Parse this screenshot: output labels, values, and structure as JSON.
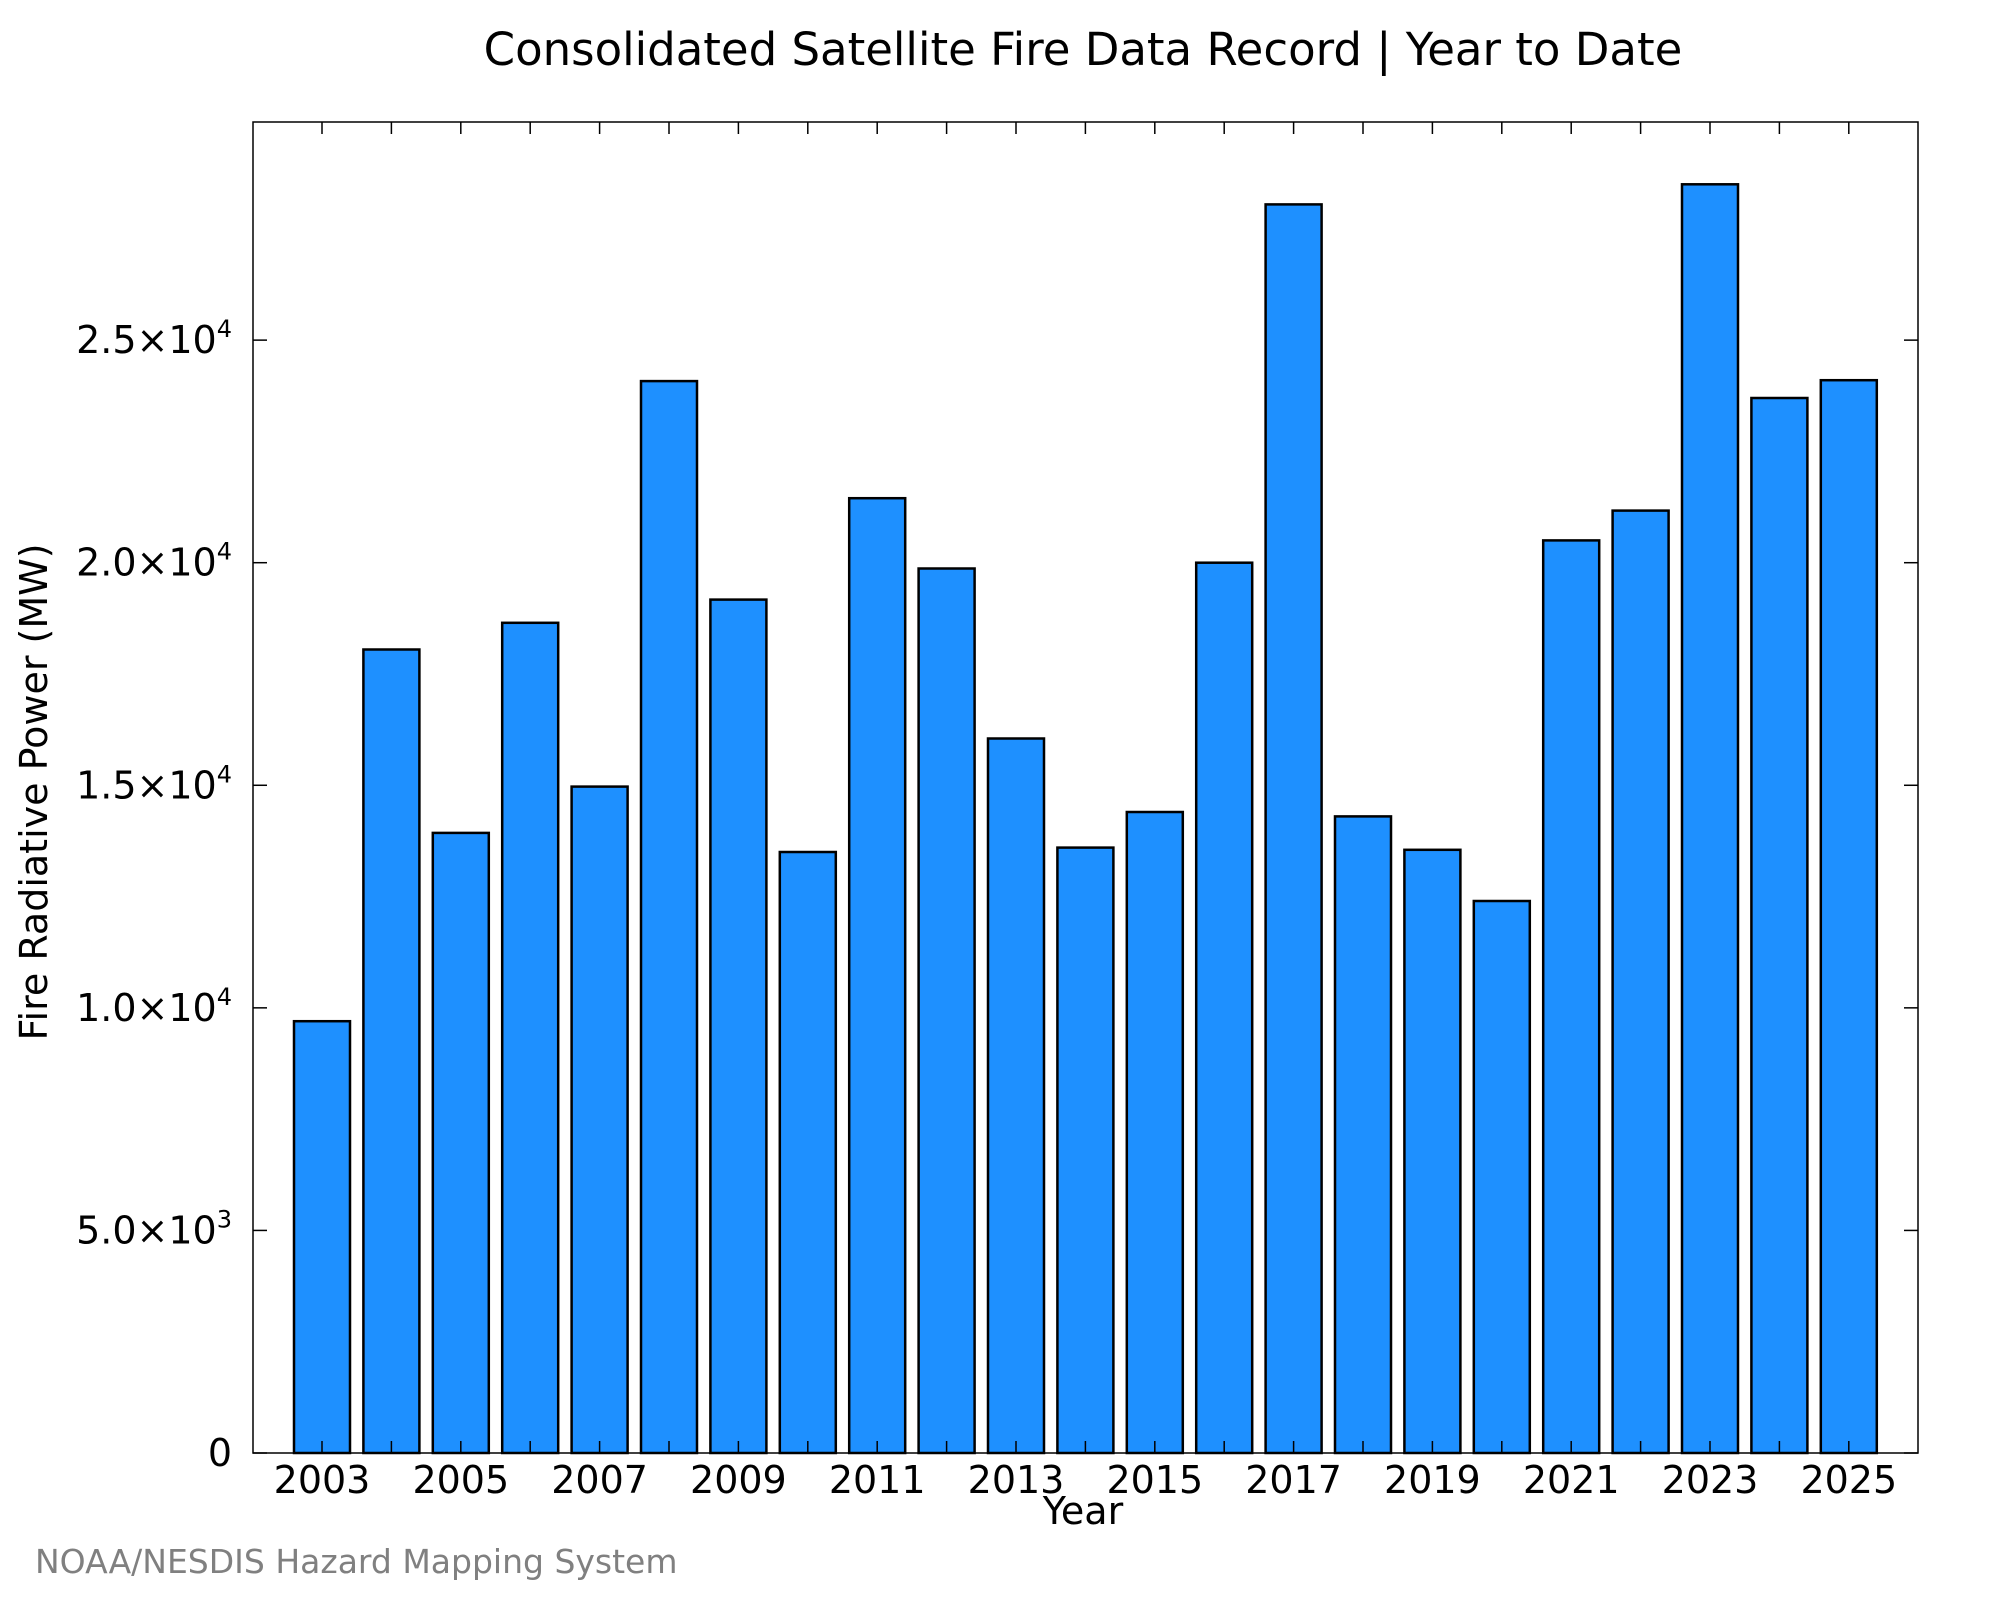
{
  "title": "Consolidated Satellite Fire Data Record | Year to Date",
  "source_note": "NOAA/NESDIS Hazard Mapping System",
  "colors": {
    "bar_fill": "#1e90ff",
    "bar_stroke": "#000000",
    "axis": "#000000",
    "source_text": "#808080"
  },
  "chart_data": {
    "type": "bar",
    "title": "Consolidated Satellite Fire Data Record | Year to Date",
    "xlabel": "Year",
    "ylabel": "Fire Radiative Power (MW)",
    "categories": [
      "2003",
      "2004",
      "2005",
      "2006",
      "2007",
      "2008",
      "2009",
      "2010",
      "2011",
      "2012",
      "2013",
      "2014",
      "2015",
      "2016",
      "2017",
      "2018",
      "2019",
      "2020",
      "2021",
      "2022",
      "2023",
      "2024",
      "2025"
    ],
    "values": [
      9700,
      18050,
      13930,
      18650,
      14970,
      24080,
      19170,
      13500,
      21450,
      19870,
      16050,
      13600,
      14400,
      20000,
      28050,
      14300,
      13550,
      12400,
      20500,
      21170,
      28500,
      23700,
      24100
    ],
    "x_tick_labels": [
      "2003",
      "2005",
      "2007",
      "2009",
      "2011",
      "2013",
      "2015",
      "2017",
      "2019",
      "2021",
      "2023",
      "2025"
    ],
    "y_ticks": [
      {
        "value": 0,
        "mantissa": "0",
        "exponent": ""
      },
      {
        "value": 5000,
        "mantissa": "5.0×10",
        "exponent": "3"
      },
      {
        "value": 10000,
        "mantissa": "1.0×10",
        "exponent": "4"
      },
      {
        "value": 15000,
        "mantissa": "1.5×10",
        "exponent": "4"
      },
      {
        "value": 20000,
        "mantissa": "2.0×10",
        "exponent": "4"
      },
      {
        "value": 25000,
        "mantissa": "2.5×10",
        "exponent": "4"
      }
    ],
    "ylim": [
      0,
      29900
    ],
    "grid": false,
    "legend": "none"
  }
}
